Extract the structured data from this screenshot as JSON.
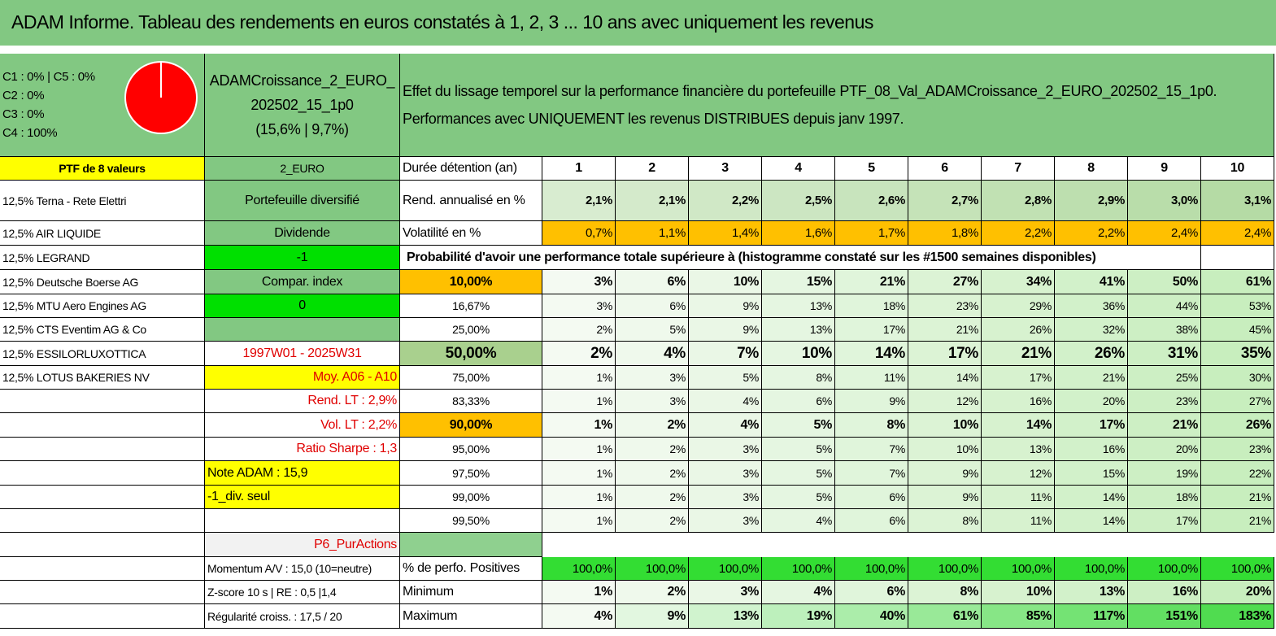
{
  "title": "ADAM Informe. Tableau des rendements en euros constatés à 1, 2, 3 ... 10 ans avec uniquement les revenus",
  "allocation": [
    "C1 : 0% | C5 : 0%",
    "C2 : 0%",
    "C3 : 0%",
    "C4 : 100%"
  ],
  "portfolio": {
    "name_lines": [
      "ADAMCroissance_2_EURO_",
      "202502_15_1p0"
    ],
    "stats": "(15,6% | 9,7%)"
  },
  "description": [
    "Effet du lissage temporel sur la performance financière du portefeuille PTF_08_Val_ADAMCroissance_2_EURO_202502_15_1p0.",
    "Performances avec UNIQUEMENT les revenus DISTRIBUES depuis janv 1997."
  ],
  "holdings_header": "PTF de 8 valeurs",
  "holdings": [
    "12,5% Terna - Rete Elettri",
    "12,5% AIR LIQUIDE",
    "12,5% LEGRAND",
    "12,5% Deutsche Boerse AG",
    "12,5% MTU Aero Engines AG",
    "12,5% CTS Eventim AG & Co",
    "12,5% ESSILORLUXOTTICA",
    "12,5% LOTUS BAKERIES NV"
  ],
  "side": {
    "currency": "2_EURO",
    "profile": "Portefeuille diversifié",
    "income": "Dividende",
    "income_code": "-1",
    "compare": "Compar. index",
    "compare_code": "0",
    "period": "1997W01 - 2025W31",
    "average": "Moy. A06 - A10",
    "long_term_return": "Rend. LT : 2,9%",
    "long_term_vol": "Vol. LT : 2,2%",
    "sharpe": "Ratio Sharpe : 1,3",
    "note": "Note ADAM : 15,9",
    "dividend_only": "-1_div. seul",
    "category": "P6_PurActions",
    "momentum": "Momentum A/V : 15,0 (10=neutre)",
    "zscore": "Z-score 10 s | RE : 0,5 |1,4",
    "regularity": "Régularité croiss. : 17,5 / 20"
  },
  "horizons": {
    "label": "Durée détention (an)",
    "years": [
      1,
      2,
      3,
      4,
      5,
      6,
      7,
      8,
      9,
      10
    ]
  },
  "annualized": {
    "label": "Rend. annualisé en %",
    "values": [
      "2,1%",
      "2,1%",
      "2,2%",
      "2,5%",
      "2,6%",
      "2,7%",
      "2,8%",
      "2,9%",
      "3,0%",
      "3,1%"
    ]
  },
  "volatility": {
    "label": "Volatilité en %",
    "values": [
      "0,7%",
      "1,1%",
      "1,4%",
      "1,6%",
      "1,7%",
      "1,8%",
      "2,2%",
      "2,2%",
      "2,4%",
      "2,4%"
    ]
  },
  "probability_title": "Probabilité d'avoir une performance totale supérieure à (histogramme constaté sur les #1500 semaines disponibles)",
  "probability_rows": [
    {
      "threshold": "10,00%",
      "values": [
        "3%",
        "6%",
        "10%",
        "15%",
        "21%",
        "27%",
        "34%",
        "41%",
        "50%",
        "61%"
      ]
    },
    {
      "threshold": "16,67%",
      "values": [
        "3%",
        "6%",
        "9%",
        "13%",
        "18%",
        "23%",
        "29%",
        "36%",
        "44%",
        "53%"
      ]
    },
    {
      "threshold": "25,00%",
      "values": [
        "2%",
        "5%",
        "9%",
        "13%",
        "17%",
        "21%",
        "26%",
        "32%",
        "38%",
        "45%"
      ]
    },
    {
      "threshold": "50,00%",
      "values": [
        "2%",
        "4%",
        "7%",
        "10%",
        "14%",
        "17%",
        "21%",
        "26%",
        "31%",
        "35%"
      ]
    },
    {
      "threshold": "75,00%",
      "values": [
        "1%",
        "3%",
        "5%",
        "8%",
        "11%",
        "14%",
        "17%",
        "21%",
        "25%",
        "30%"
      ]
    },
    {
      "threshold": "83,33%",
      "values": [
        "1%",
        "3%",
        "4%",
        "6%",
        "9%",
        "12%",
        "16%",
        "20%",
        "23%",
        "27%"
      ]
    },
    {
      "threshold": "90,00%",
      "values": [
        "1%",
        "2%",
        "4%",
        "5%",
        "8%",
        "10%",
        "14%",
        "17%",
        "21%",
        "26%"
      ]
    },
    {
      "threshold": "95,00%",
      "values": [
        "1%",
        "2%",
        "3%",
        "5%",
        "7%",
        "10%",
        "13%",
        "16%",
        "20%",
        "23%"
      ]
    },
    {
      "threshold": "97,50%",
      "values": [
        "1%",
        "2%",
        "3%",
        "5%",
        "7%",
        "9%",
        "12%",
        "15%",
        "19%",
        "22%"
      ]
    },
    {
      "threshold": "99,00%",
      "values": [
        "1%",
        "2%",
        "3%",
        "5%",
        "6%",
        "9%",
        "11%",
        "14%",
        "18%",
        "21%"
      ]
    },
    {
      "threshold": "99,50%",
      "values": [
        "1%",
        "2%",
        "3%",
        "4%",
        "6%",
        "8%",
        "11%",
        "14%",
        "17%",
        "21%"
      ]
    }
  ],
  "positives": {
    "label": "% de perfo. Positives",
    "values": [
      "100,0%",
      "100,0%",
      "100,0%",
      "100,0%",
      "100,0%",
      "100,0%",
      "100,0%",
      "100,0%",
      "100,0%",
      "100,0%"
    ]
  },
  "minimum": {
    "label": "Minimum",
    "values": [
      "1%",
      "2%",
      "3%",
      "4%",
      "6%",
      "8%",
      "10%",
      "13%",
      "16%",
      "20%"
    ]
  },
  "maximum": {
    "label": "Maximum",
    "values": [
      "4%",
      "9%",
      "13%",
      "19%",
      "40%",
      "61%",
      "85%",
      "117%",
      "151%",
      "183%"
    ]
  }
}
